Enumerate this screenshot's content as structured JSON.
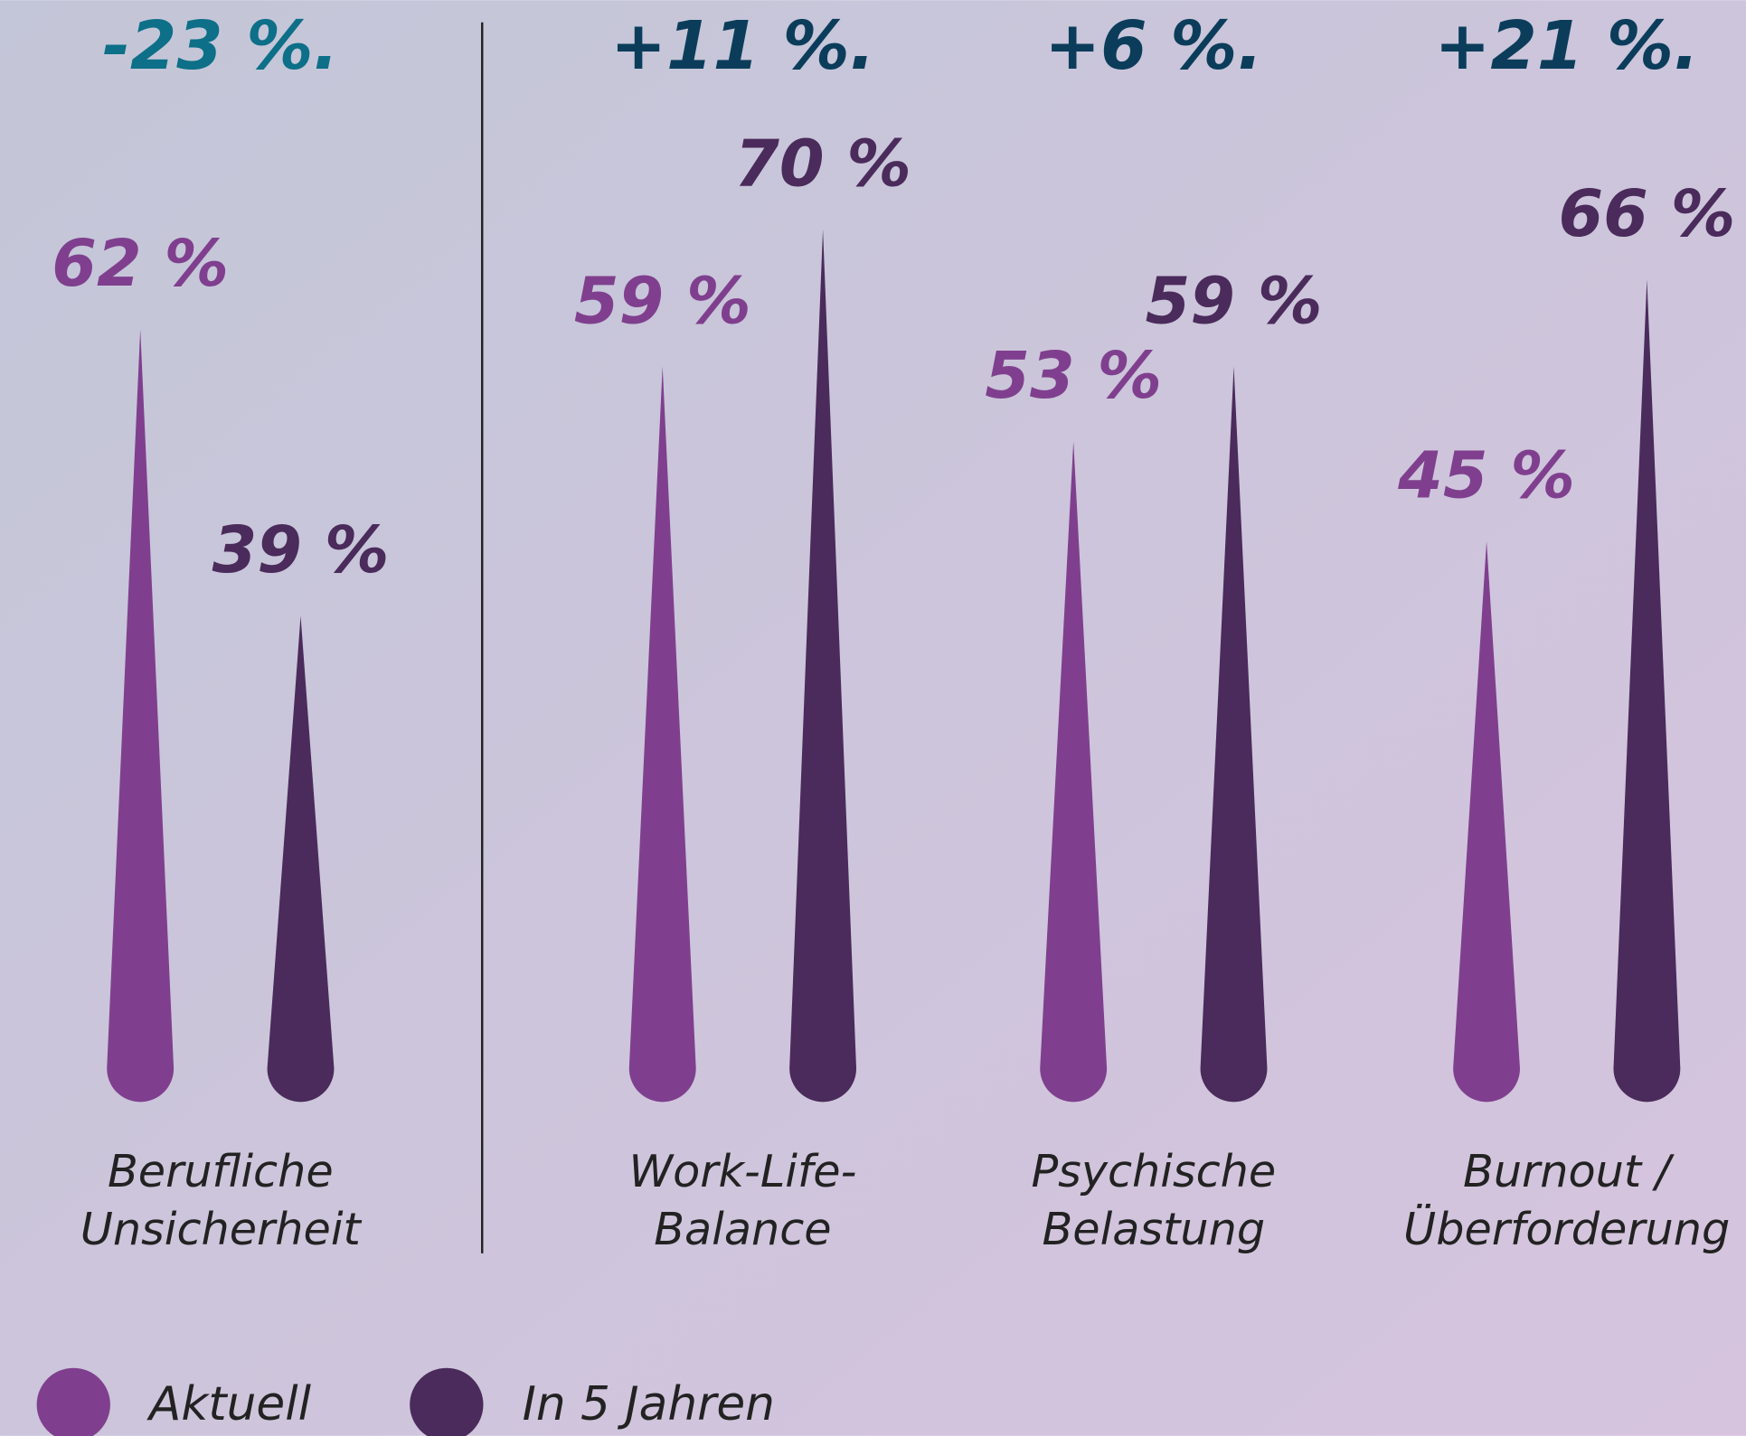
{
  "chart_data": {
    "type": "spike",
    "categories": [
      [
        "Berufliche",
        "Unsicherheit"
      ],
      [
        "Work-Life-",
        "Balance"
      ],
      [
        "Psychische",
        "Belastung"
      ],
      [
        "Burnout /",
        "Überforderung"
      ]
    ],
    "series": [
      {
        "name": "Aktuell",
        "color": "#7f3f8e",
        "values": [
          62,
          59,
          53,
          45
        ],
        "value_labels": [
          "62 %",
          "59 %",
          "53 %",
          "45 %"
        ]
      },
      {
        "name": "In 5 Jahren",
        "color": "#4a2b5b",
        "values": [
          39,
          70,
          59,
          66
        ],
        "value_labels": [
          "39 %",
          "70 %",
          "59 %",
          "66 %"
        ]
      }
    ],
    "annotations": [
      {
        "value": -23,
        "label": "-23 %.",
        "color": "#0d6f88"
      },
      {
        "value": 11,
        "label": "+11 %.",
        "color": "#0b3d5b"
      },
      {
        "value": 6,
        "label": "+6 %.",
        "color": "#0b3d5b"
      },
      {
        "value": 21,
        "label": "+21 %.",
        "color": "#0b3d5b"
      }
    ]
  }
}
